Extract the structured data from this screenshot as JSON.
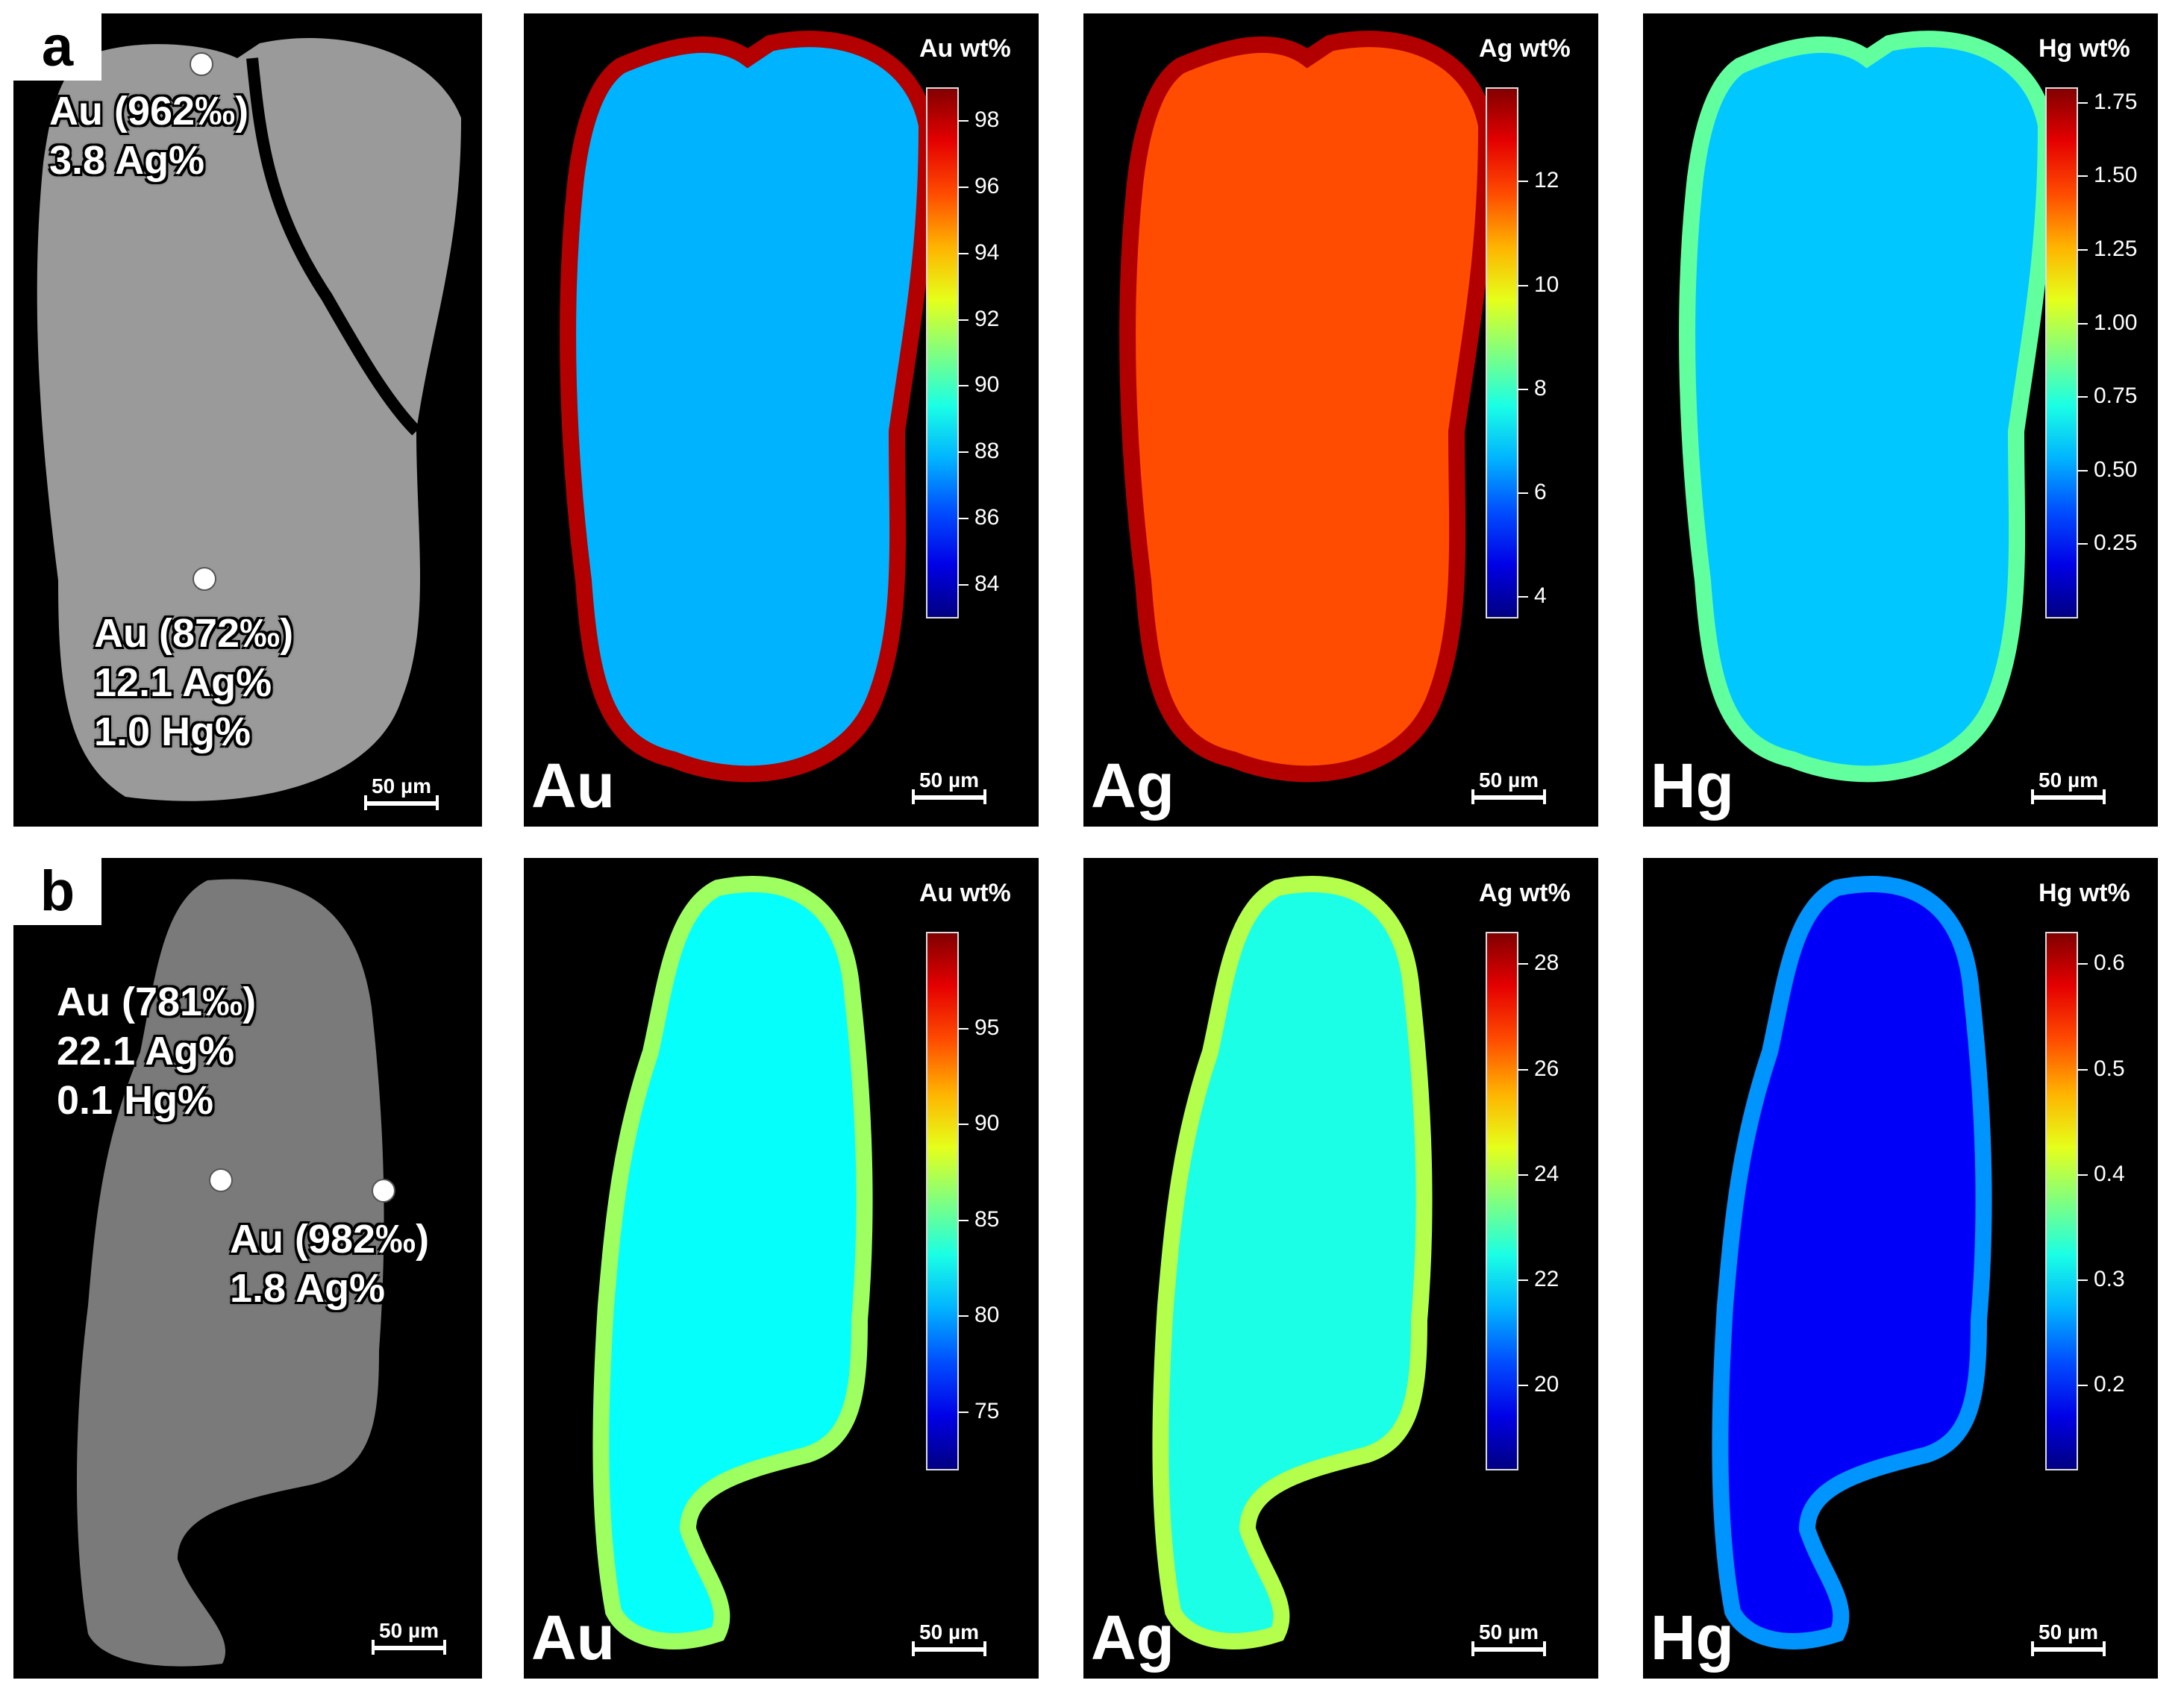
{
  "colors": {
    "background": "#000000",
    "bse_gray": "#8c8c8c",
    "jet_low": "#00008f",
    "jet_mid": "#3fbfff",
    "jet_high": "#bf0000"
  },
  "scale_bar_label": "50 µm",
  "row_a": {
    "label": "a",
    "bse": {
      "annotations": [
        {
          "lines": [
            "Au (962‰)",
            "3.8 Ag%"
          ]
        },
        {
          "lines": [
            "Au (872‰)",
            "12.1 Ag%",
            "1.0 Hg%"
          ]
        }
      ]
    },
    "maps": [
      {
        "element": "Au",
        "colorbar_title": "Au wt%",
        "ticks": [
          "98",
          "96",
          "94",
          "92",
          "90",
          "88",
          "86",
          "84"
        ],
        "min": 83,
        "max": 99,
        "body_level": 0.3
      },
      {
        "element": "Ag",
        "colorbar_title": "Ag wt%",
        "ticks": [
          "12",
          "10",
          "8",
          "6",
          "4"
        ],
        "min": 3.6,
        "max": 13.8,
        "body_level": 0.8
      },
      {
        "element": "Hg",
        "colorbar_title": "Hg wt%",
        "ticks": [
          "1.75",
          "1.50",
          "1.25",
          "1.00",
          "0.75",
          "0.50",
          "0.25"
        ],
        "min": 0.0,
        "max": 1.8,
        "body_level": 0.32
      }
    ]
  },
  "row_b": {
    "label": "b",
    "bse": {
      "annotations": [
        {
          "lines": [
            "Au (781‰)",
            "22.1 Ag%",
            "0.1 Hg%"
          ]
        },
        {
          "lines": [
            "Au (982‰)",
            "1.8 Ag%"
          ]
        }
      ]
    },
    "maps": [
      {
        "element": "Au",
        "colorbar_title": "Au wt%",
        "ticks": [
          "95",
          "90",
          "85",
          "80",
          "75"
        ],
        "min": 72,
        "max": 100,
        "body_level": 0.38
      },
      {
        "element": "Ag",
        "colorbar_title": "Ag wt%",
        "ticks": [
          "28",
          "26",
          "24",
          "22",
          "20"
        ],
        "min": 18.4,
        "max": 28.6,
        "body_level": 0.4
      },
      {
        "element": "Hg",
        "colorbar_title": "Hg wt%",
        "ticks": [
          "0.6",
          "0.5",
          "0.4",
          "0.3",
          "0.2"
        ],
        "min": 0.12,
        "max": 0.63,
        "body_level": 0.12
      }
    ]
  }
}
